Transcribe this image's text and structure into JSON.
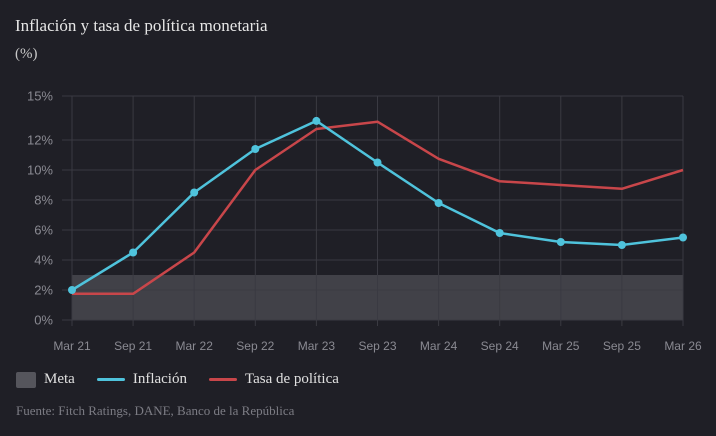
{
  "header": {
    "title": "Inflación y tasa de política monetaria",
    "subtitle": "(%)"
  },
  "legend": {
    "meta_label": "Meta",
    "inflation_label": "Inflación",
    "policy_label": "Tasa de política"
  },
  "footer": {
    "source": "Fuente: Fitch Ratings, DANE, Banco de la República"
  },
  "colors": {
    "inflation": "#4fc3dc",
    "policy": "#c8464a",
    "target_band": "#45454d",
    "grid": "#3a3a42"
  },
  "chart_data": {
    "type": "line",
    "title": "Inflación y tasa de política monetaria",
    "ylabel": "(%)",
    "categories": [
      "Mar 21",
      "Sep 21",
      "Mar 22",
      "Sep 22",
      "Mar 23",
      "Sep 23",
      "Mar 24",
      "Sep 24",
      "Mar 25",
      "Sep 25",
      "Mar 26"
    ],
    "y_ticks": [
      0,
      2,
      4,
      6,
      8,
      10,
      12,
      15
    ],
    "y_tick_labels": [
      "0%",
      "2%",
      "4%",
      "6%",
      "8%",
      "10%",
      "12%",
      "15%"
    ],
    "band": {
      "name": "Meta",
      "from": 0,
      "to": 3
    },
    "series": [
      {
        "name": "Inflación",
        "values": [
          2.0,
          4.5,
          8.5,
          11.4,
          13.3,
          10.5,
          7.8,
          5.8,
          5.2,
          5.0,
          5.5
        ],
        "markers": true
      },
      {
        "name": "Tasa de política",
        "values": [
          1.75,
          1.75,
          4.5,
          10.0,
          12.75,
          13.25,
          10.75,
          9.25,
          9.0,
          8.75,
          10.0
        ],
        "markers": false
      }
    ],
    "legend_position": "bottom-left",
    "grid": true
  }
}
